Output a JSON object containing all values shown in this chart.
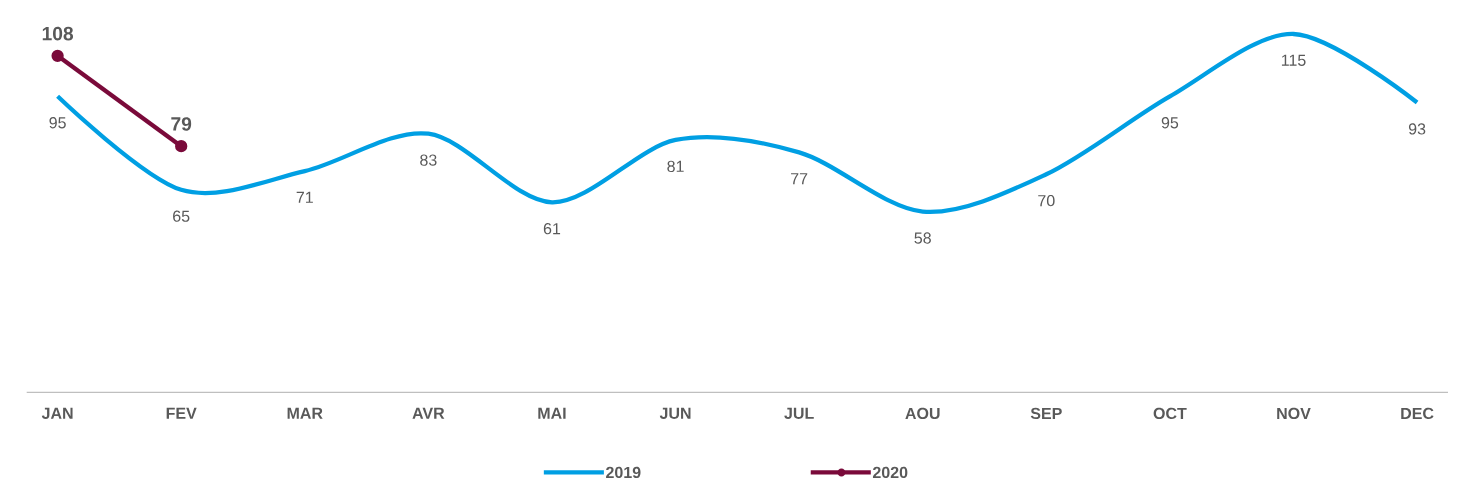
{
  "chart_data": {
    "type": "line",
    "categories": [
      "JAN",
      "FEV",
      "MAR",
      "AVR",
      "MAI",
      "JUN",
      "JUL",
      "AOU",
      "SEP",
      "OCT",
      "NOV",
      "DEC"
    ],
    "series": [
      {
        "name": "2019",
        "color": "#009fe3",
        "marker": "none",
        "values": [
          95,
          65,
          71,
          83,
          61,
          81,
          77,
          58,
          70,
          95,
          115,
          93
        ]
      },
      {
        "name": "2020",
        "color": "#7a0a3a",
        "marker": "circle",
        "values": [
          108,
          79,
          null,
          null,
          null,
          null,
          null,
          null,
          null,
          null,
          null,
          null
        ]
      }
    ],
    "data_labels": true,
    "legend": "bottom",
    "line_style": "solid"
  }
}
